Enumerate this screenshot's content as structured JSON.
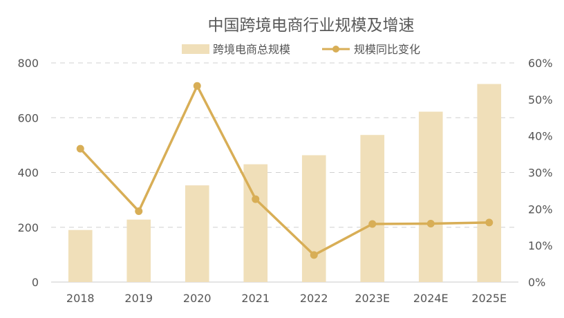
{
  "colors": {
    "bar": "#F0DFB9",
    "line": "#D8AE56",
    "grid": "#D0D0D0",
    "axis": "#C8C8C8",
    "text": "#555555",
    "title": "#595959"
  },
  "legend": {
    "bar_label": "跨境电商总规模",
    "line_label": "规模同比变化",
    "placement": "top-center"
  },
  "chart_data": {
    "type": "bar",
    "title": "中国跨境电商行业规模及增速",
    "categories": [
      "2018",
      "2019",
      "2020",
      "2021",
      "2022",
      "2023E",
      "2024E",
      "2025E"
    ],
    "series": [
      {
        "name": "跨境电商总规模",
        "type": "bar",
        "axis": "left",
        "values": [
          190,
          228,
          353,
          430,
          463,
          537,
          622,
          723
        ]
      },
      {
        "name": "规模同比变化",
        "type": "line",
        "axis": "right",
        "values": [
          36.5,
          19.4,
          53.7,
          22.7,
          7.4,
          15.9,
          16.0,
          16.3
        ]
      }
    ],
    "y_left": {
      "min": 0,
      "max": 800,
      "ticks": [
        0,
        200,
        400,
        600,
        800
      ]
    },
    "y_right": {
      "min": 0,
      "max": 60,
      "ticks": [
        "0%",
        "10%",
        "20%",
        "30%",
        "40%",
        "50%",
        "60%"
      ],
      "tick_values": [
        0,
        10,
        20,
        30,
        40,
        50,
        60
      ]
    },
    "grid": true
  }
}
